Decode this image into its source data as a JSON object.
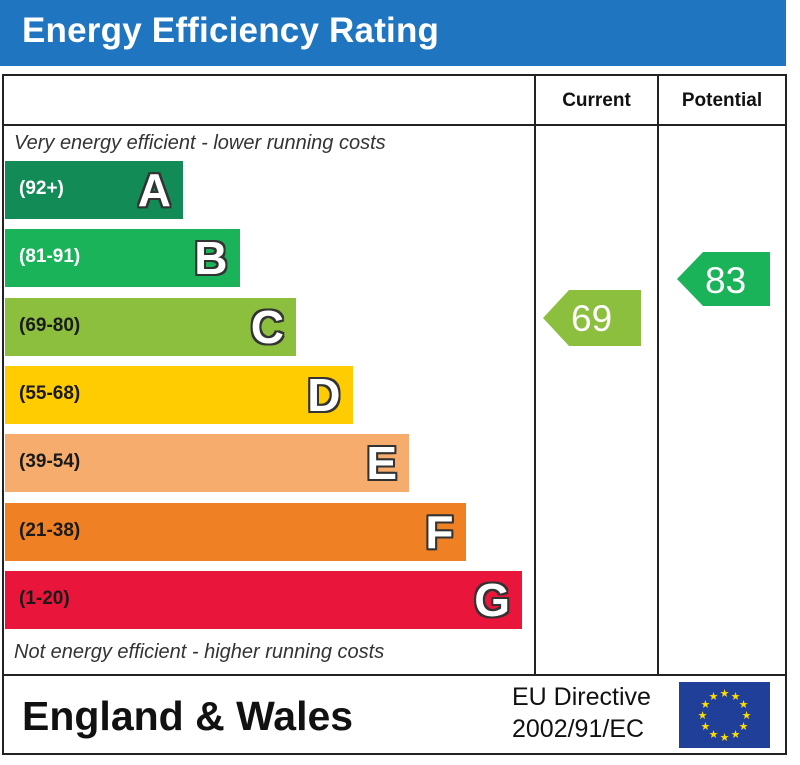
{
  "header": {
    "title": "Energy Efficiency Rating"
  },
  "columns": {
    "current": "Current",
    "potential": "Potential"
  },
  "notes": {
    "top": "Very energy efficient - lower running costs",
    "bottom": "Not energy efficient - higher running costs"
  },
  "chart_data": {
    "type": "bar",
    "categories": [
      "A",
      "B",
      "C",
      "D",
      "E",
      "F",
      "G"
    ],
    "ranges": [
      "(92+)",
      "(81-91)",
      "(69-80)",
      "(55-68)",
      "(39-54)",
      "(21-38)",
      "(1-20)"
    ],
    "band_colors": [
      "#138b56",
      "#1bb35a",
      "#8dbf3f",
      "#ffcc02",
      "#f6ac6c",
      "#ef8023",
      "#e9153b"
    ],
    "range_text_colors": [
      "#ffffff",
      "#ffffff",
      "#1a1a1a",
      "#1a1a1a",
      "#1a1a1a",
      "#1a1a1a",
      "#1a1a1a"
    ],
    "current": {
      "value": 69,
      "label": "69",
      "color": "#8dbf3f"
    },
    "potential": {
      "value": 83,
      "label": "83",
      "color": "#1bb35a"
    }
  },
  "footer": {
    "region": "England & Wales",
    "directive_line1": "EU Directive",
    "directive_line2": "2002/91/EC",
    "flag_icon": "eu-flag-icon"
  }
}
